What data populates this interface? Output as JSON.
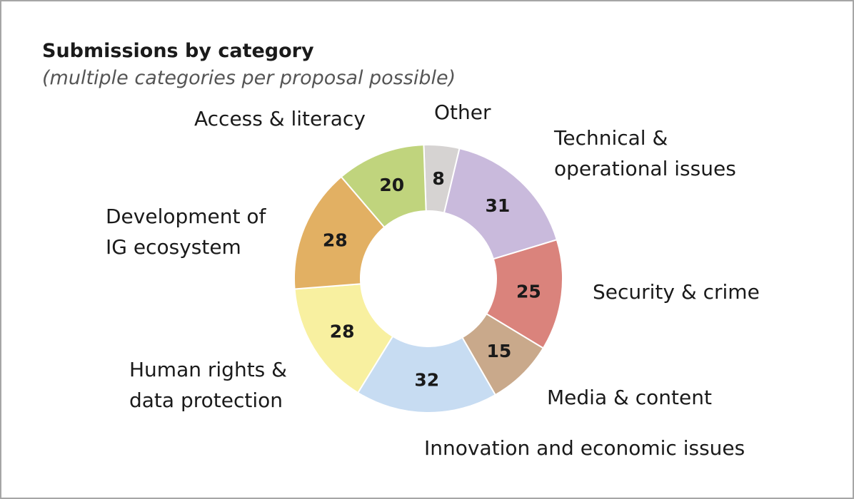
{
  "chart_data": {
    "type": "pie",
    "donut": true,
    "title": "Submissions by category",
    "subtitle": "(multiple categories per proposal possible)",
    "categories": [
      "Other",
      "Technical & operational issues",
      "Security & crime",
      "Media & content",
      "Innovation and economic issues",
      "Human rights & data protection",
      "Development of IG ecosystem",
      "Access & literacy"
    ],
    "values": [
      8,
      31,
      25,
      15,
      32,
      28,
      28,
      20
    ],
    "colors": [
      "#d6d3d2",
      "#c9badc",
      "#da837c",
      "#c9a98b",
      "#c7dcf2",
      "#f8f0a0",
      "#e2b063",
      "#c0d47d"
    ]
  }
}
